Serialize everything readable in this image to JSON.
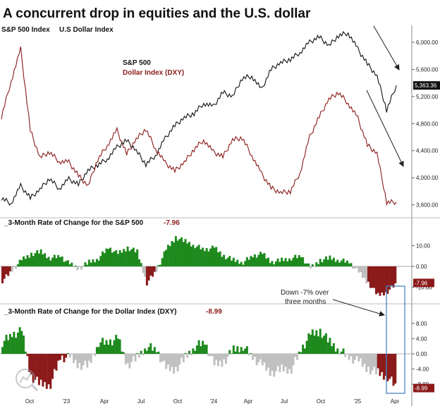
{
  "title": "A concurrent drop in equities and the U.S. dollar",
  "header_labels": [
    "S&P 500 Index",
    "U.S Dollar Index"
  ],
  "colors": {
    "spx": "#111111",
    "dxy": "#8b1a1a",
    "pos": "#1e8a1e",
    "neg": "#8b1a1a",
    "negLight": "#c0c0c0",
    "highlight": "#4a86c5"
  },
  "chart_data": [
    {
      "type": "line",
      "panel": "price",
      "x_ticks": [
        "Oct",
        "'23",
        "Apr",
        "Jul",
        "Oct",
        "'24",
        "Apr",
        "Jul",
        "Oct",
        "'25",
        "Apr"
      ],
      "y_ticks": [
        "6,000.00",
        "5,600.00",
        "5,200.00",
        "4,800.00",
        "4,400.00",
        "4,000.00",
        "3,600.00"
      ],
      "ylim": [
        3450,
        6250
      ],
      "legend": [
        "S&P 500",
        "Dollar Index (DXY)"
      ],
      "last_value_label": "5,363.36",
      "series": [
        {
          "name": "S&P 500",
          "values": [
            3700,
            3620,
            3880,
            3700,
            3830,
            3990,
            3840,
            3980,
            3900,
            4110,
            4190,
            4280,
            4450,
            4550,
            4400,
            4200,
            4330,
            4580,
            4770,
            4890,
            4950,
            5100,
            5050,
            5260,
            5200,
            5470,
            5500,
            5300,
            5600,
            5700,
            5750,
            5850,
            6000,
            6080,
            5950,
            6100,
            6140,
            5900,
            5680,
            5500,
            5000,
            5363
          ]
        },
        {
          "name": "Dollar Index (DXY)",
          "values": [
            4900,
            5420,
            5900,
            4700,
            4300,
            4380,
            4240,
            4230,
            4030,
            3880,
            4270,
            4480,
            4700,
            4350,
            4570,
            4720,
            4430,
            4220,
            4100,
            4230,
            4420,
            4560,
            4380,
            4310,
            4560,
            4590,
            4330,
            4060,
            3850,
            3780,
            3800,
            4070,
            4600,
            4900,
            5160,
            5260,
            5100,
            4880,
            4480,
            4360,
            3640,
            3640
          ]
        }
      ]
    },
    {
      "type": "area",
      "panel": "roc_spx",
      "title": "3-Month Rate of Change for the S&P 500",
      "last_value": "-7.96",
      "y_ticks": [
        "10.00",
        "0.00",
        "-10.00"
      ],
      "ylim": [
        -17,
        19
      ],
      "values": [
        -7,
        -2,
        3,
        6,
        7,
        4,
        5,
        1,
        -1,
        2,
        4,
        9,
        6,
        9,
        7,
        -8,
        -2,
        8,
        14,
        12,
        10,
        8,
        9,
        5,
        3,
        2,
        5,
        6,
        2,
        3,
        4,
        5,
        -1,
        3,
        4,
        3,
        2,
        -3,
        -8,
        -14,
        -12,
        -7.96
      ]
    },
    {
      "type": "area",
      "panel": "roc_dxy",
      "title": "3-Month Rate of Change for the Dollar Index (DXY)",
      "last_value": "-8.99",
      "y_ticks": [
        "8.00",
        "4.00",
        "0.00",
        "-4.00",
        "-8.00"
      ],
      "ylim": [
        -10,
        10
      ],
      "values": [
        3,
        5,
        6,
        -6,
        -8,
        -8,
        -1,
        -1,
        -3,
        -3,
        3,
        3,
        4,
        -3,
        -1,
        2,
        1,
        -4,
        -4,
        -1,
        2,
        3,
        -3,
        -2,
        1,
        2,
        -1,
        -3,
        -5,
        -4,
        -4,
        1,
        5,
        6,
        3,
        1,
        -1,
        -2,
        -4,
        -5,
        -6,
        -8.99
      ]
    }
  ],
  "annotation": {
    "text": [
      "Down -7% over",
      "three months"
    ]
  }
}
